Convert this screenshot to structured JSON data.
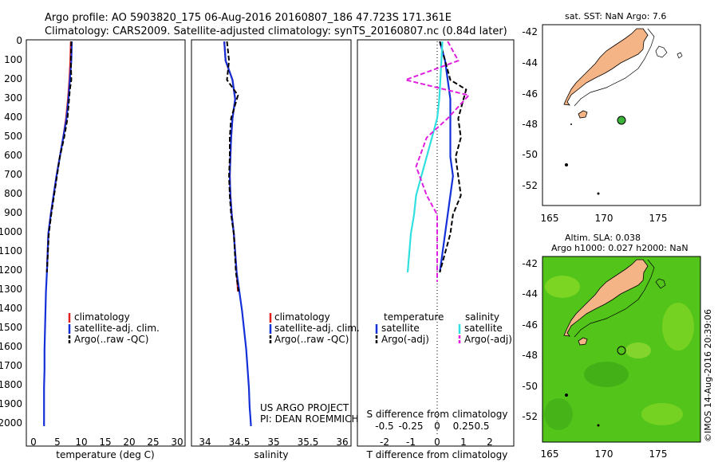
{
  "header": {
    "title": "Argo profile: AO 5903820_175 06-Aug-2016 20160807_186 47.723S 171.361E",
    "subtitle": "Climatology: CARS2009. Satellite-adjusted climatology: synTS_20160807.nc (0.84d later)"
  },
  "depth_ticks": [
    "0",
    "100",
    "200",
    "300",
    "400",
    "500",
    "600",
    "700",
    "800",
    "900",
    "1000",
    "1100",
    "1200",
    "1300",
    "1400",
    "1500",
    "1600",
    "1700",
    "1800",
    "1900",
    "2000"
  ],
  "colors": {
    "climatology": "#e0201c",
    "satellite": "#1430d8",
    "argo": "#000000",
    "sal_satellite": "#30e0e0",
    "sal_argo": "#e020e0",
    "land": "#f5b485",
    "sla_field": "#52c41a"
  },
  "temp_panel": {
    "xlabel": "temperature (deg C)",
    "xticks": [
      "0",
      "5",
      "10",
      "15",
      "20",
      "25",
      "30"
    ],
    "legend": [
      "climatology",
      "satellite-adj. clim.",
      "Argo(..raw -QC)"
    ]
  },
  "sal_panel": {
    "xlabel": "salinity",
    "xticks": [
      "34",
      "34.5",
      "35",
      "35.5",
      "36"
    ],
    "legend": [
      "climatology",
      "satellite-adj. clim.",
      "Argo(..raw -QC)"
    ],
    "credit1": "US ARGO PROJECT",
    "credit2": "PI: DEAN ROEMMICH"
  },
  "diff_panel": {
    "xlabel_top": "S difference from climatology",
    "xticks_top": [
      "-0.5",
      "-0.25",
      "0",
      "0.25",
      "0.5"
    ],
    "xlabel": "T difference from climatology",
    "xticks": [
      "-2",
      "-1",
      "0",
      "1",
      "2"
    ],
    "legend_temp_title": "temperature",
    "legend_sal_title": "salinity",
    "legend_items": [
      "satellite",
      "Argo(-adj)",
      "satellite",
      "Argo(-adj)"
    ]
  },
  "map_sst": {
    "title": "sat. SST: NaN Argo: 7.6",
    "yticks": [
      "-42",
      "-44",
      "-46",
      "-48",
      "-50",
      "-52"
    ],
    "xticks": [
      "165",
      "170",
      "175"
    ]
  },
  "map_sla": {
    "title1": "Altim. SLA: 0.038",
    "title2": "Argo h1000: 0.027 h2000: NaN",
    "yticks": [
      "-42",
      "-44",
      "-46",
      "-48",
      "-50",
      "-52"
    ],
    "xticks": [
      "165",
      "170",
      "175"
    ]
  },
  "footer": {
    "credit": "©IMOS 14-Aug-2016 20:39:06"
  },
  "chart_data": [
    {
      "type": "line",
      "panel": "temperature",
      "xlabel": "temperature (deg C)",
      "ylabel": "",
      "xlim": [
        -2,
        31
      ],
      "ylim": [
        2000,
        0
      ],
      "series": [
        {
          "name": "climatology",
          "x": [
            7.8,
            7.7,
            7.5,
            7.2,
            6.8,
            6.2,
            5.5,
            4.8,
            4.2,
            3.6,
            3.1,
            2.8
          ],
          "y": [
            0,
            100,
            200,
            300,
            400,
            500,
            600,
            700,
            800,
            900,
            1000,
            1200
          ]
        },
        {
          "name": "satellite-adj. clim.",
          "x": [
            8.0,
            7.9,
            7.6,
            7.3,
            6.9,
            6.2,
            5.5,
            4.8,
            4.2,
            3.6,
            3.1,
            2.8,
            2.6,
            2.5,
            2.4,
            2.3,
            2.3,
            2.2,
            2.2,
            2.2,
            2.2
          ],
          "y": [
            0,
            100,
            200,
            300,
            400,
            500,
            600,
            700,
            800,
            900,
            1000,
            1200,
            1300,
            1400,
            1500,
            1600,
            1700,
            1800,
            1900,
            1950,
            2000
          ]
        },
        {
          "name": "Argo(..raw -QC)",
          "x": [
            7.9,
            7.8,
            7.9,
            7.6,
            7.1,
            6.4,
            5.5,
            4.9,
            4.3,
            3.7,
            3.2,
            2.8
          ],
          "y": [
            0,
            100,
            200,
            250,
            400,
            500,
            600,
            700,
            800,
            900,
            1000,
            1200
          ]
        }
      ]
    },
    {
      "type": "line",
      "panel": "salinity",
      "xlabel": "salinity",
      "ylabel": "",
      "xlim": [
        33.8,
        36.1
      ],
      "ylim": [
        2000,
        0
      ],
      "series": [
        {
          "name": "climatology",
          "x": [
            34.28,
            34.3,
            34.4,
            34.44,
            34.4,
            34.38,
            34.37,
            34.36,
            34.37,
            34.39,
            34.42,
            34.46,
            34.48
          ],
          "y": [
            0,
            100,
            200,
            300,
            400,
            500,
            600,
            700,
            800,
            900,
            1000,
            1200,
            1300
          ]
        },
        {
          "name": "satellite-adj. clim.",
          "x": [
            34.28,
            34.3,
            34.4,
            34.44,
            34.4,
            34.38,
            34.37,
            34.36,
            34.37,
            34.39,
            34.42,
            34.46,
            34.5,
            34.54,
            34.57,
            34.6,
            34.62,
            34.64,
            34.65,
            34.66,
            34.67
          ],
          "y": [
            0,
            100,
            200,
            300,
            400,
            500,
            600,
            700,
            800,
            900,
            1000,
            1200,
            1300,
            1400,
            1500,
            1600,
            1700,
            1800,
            1900,
            1950,
            2000
          ]
        },
        {
          "name": "Argo(..raw -QC)",
          "x": [
            34.32,
            34.35,
            34.32,
            34.48,
            34.38,
            34.36,
            34.36,
            34.35,
            34.36,
            34.38,
            34.42,
            34.45,
            34.49
          ],
          "y": [
            0,
            100,
            200,
            280,
            400,
            500,
            600,
            700,
            800,
            900,
            1000,
            1200,
            1300
          ]
        }
      ]
    },
    {
      "type": "line",
      "panel": "difference",
      "xlabel": "T difference from climatology",
      "ylabel": "",
      "xlim": [
        -2.5,
        2.8
      ],
      "ylim": [
        2000,
        0
      ],
      "series": [
        {
          "name": "temperature satellite",
          "x": [
            0.1,
            0.3,
            0.4,
            0.5,
            0.5,
            0.5,
            0.5,
            0.6,
            0.5,
            0.4,
            0.3,
            0.2,
            0.1
          ],
          "y": [
            0,
            100,
            200,
            300,
            400,
            500,
            600,
            700,
            800,
            900,
            1000,
            1100,
            1200
          ]
        },
        {
          "name": "temperature Argo(-adj)",
          "x": [
            0.1,
            0.3,
            0.5,
            1.1,
            0.8,
            0.9,
            0.7,
            0.8,
            0.9,
            0.6,
            0.5,
            0.3,
            0.1
          ],
          "y": [
            0,
            100,
            200,
            250,
            400,
            500,
            600,
            700,
            800,
            900,
            1000,
            1100,
            1200
          ]
        },
        {
          "name": "salinity satellite",
          "x": [
            0.05,
            0.04,
            0.03,
            0.02,
            0.0,
            -0.05,
            -0.1,
            -0.15,
            -0.2,
            -0.22,
            -0.25,
            -0.28
          ],
          "y": [
            0,
            100,
            200,
            300,
            400,
            500,
            600,
            700,
            800,
            900,
            1000,
            1200
          ]
        },
        {
          "name": "salinity Argo(-adj)",
          "x": [
            0.1,
            0.2,
            -0.3,
            0.3,
            0.1,
            -0.1,
            -0.2,
            -0.1,
            0.0,
            0.0,
            0.0,
            0.0
          ],
          "y": [
            0,
            100,
            200,
            280,
            400,
            500,
            650,
            800,
            900,
            1000,
            1100,
            1250
          ]
        }
      ]
    }
  ]
}
